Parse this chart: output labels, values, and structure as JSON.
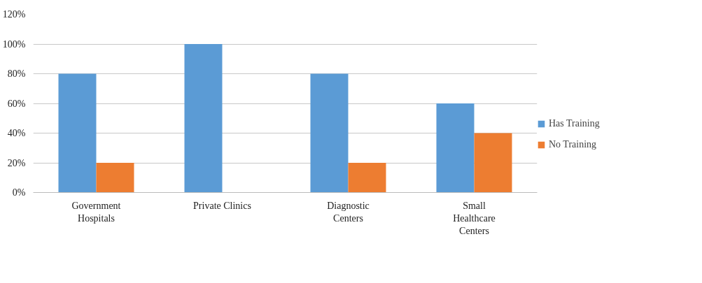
{
  "chart_data": {
    "type": "bar",
    "categories": [
      "Government\nHospitals",
      "Private Clinics",
      "Diagnostic\nCenters",
      "Small\nHealthcare\nCenters"
    ],
    "series": [
      {
        "name": "Has Training",
        "color": "#5b9bd5",
        "values": [
          80,
          100,
          80,
          60
        ]
      },
      {
        "name": "No Training",
        "color": "#ed7d31",
        "values": [
          20,
          0,
          20,
          40
        ]
      }
    ],
    "ylim": [
      0,
      120
    ],
    "yticks": [
      {
        "value": 0,
        "label": "0%"
      },
      {
        "value": 20,
        "label": "20%"
      },
      {
        "value": 40,
        "label": "40%"
      },
      {
        "value": 60,
        "label": "60%"
      },
      {
        "value": 80,
        "label": "80%"
      },
      {
        "value": 100,
        "label": "100%"
      },
      {
        "value": 120,
        "label": "120%"
      }
    ],
    "grid": "y",
    "legend": "right"
  }
}
